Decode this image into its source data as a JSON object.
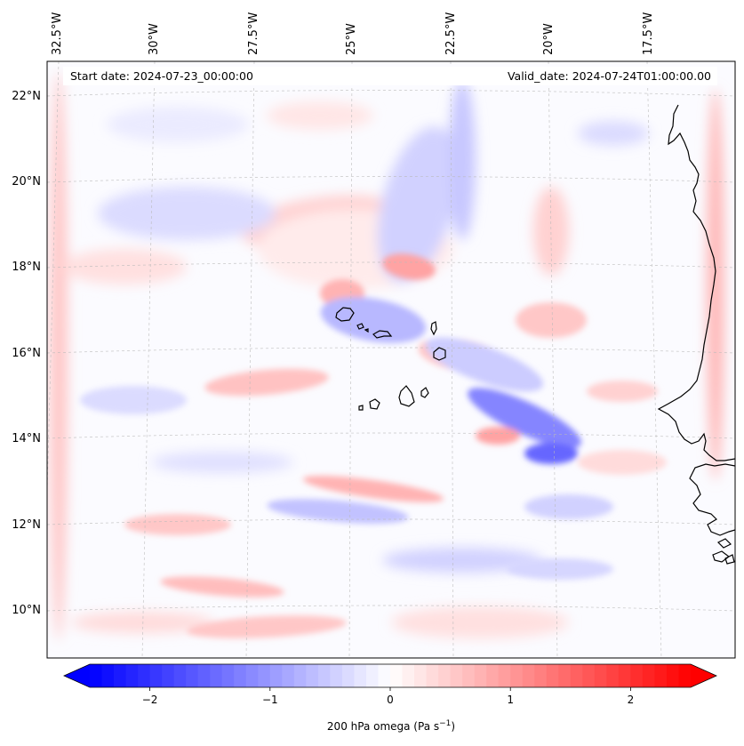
{
  "map": {
    "start_date": "Start date: 2024-07-23_00:00:00",
    "valid_date": "Valid_date: 2024-07-24T01:00:00.00",
    "lon_labels": [
      "32.5°W",
      "30°W",
      "27.5°W",
      "25°W",
      "22.5°W",
      "20°W",
      "17.5°W"
    ],
    "lat_labels": [
      "22°N",
      "20°N",
      "18°N",
      "16°N",
      "14°N",
      "12°N",
      "10°N"
    ],
    "field_description": "200 hPa vertical velocity (omega) field over eastern tropical Atlantic and Cape Verde",
    "colormap": {
      "negative": "#0000ff",
      "zero": "#ffffff",
      "positive": "#ff0000"
    }
  },
  "colorbar": {
    "ticks": [
      "−2",
      "−1",
      "0",
      "1",
      "2"
    ],
    "tick_values": [
      -2,
      -1,
      0,
      1,
      2
    ],
    "range": [
      -2.5,
      2.5
    ],
    "label_prefix": "200 hPa omega (Pa s",
    "label_exp": "−1",
    "label_suffix": ")"
  }
}
